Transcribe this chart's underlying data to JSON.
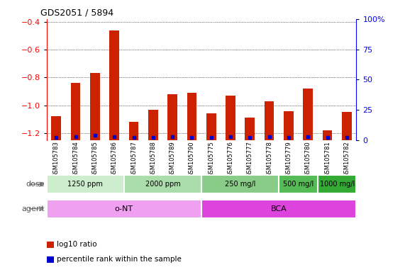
{
  "title": "GDS2051 / 5894",
  "samples": [
    "GSM105783",
    "GSM105784",
    "GSM105785",
    "GSM105786",
    "GSM105787",
    "GSM105788",
    "GSM105789",
    "GSM105790",
    "GSM105775",
    "GSM105776",
    "GSM105777",
    "GSM105778",
    "GSM105779",
    "GSM105780",
    "GSM105781",
    "GSM105782"
  ],
  "log10_ratio": [
    -1.08,
    -0.84,
    -0.77,
    -0.46,
    -1.12,
    -1.03,
    -0.92,
    -0.91,
    -1.06,
    -0.93,
    -1.09,
    -0.97,
    -1.04,
    -0.88,
    -1.18,
    -1.05
  ],
  "percentile_rank": [
    2,
    3,
    4,
    3,
    2,
    2,
    3,
    2,
    2,
    3,
    2,
    3,
    2,
    3,
    2,
    2
  ],
  "bar_color": "#cc2200",
  "dot_color": "#0000cc",
  "ylim_left": [
    -1.25,
    -0.38
  ],
  "ylim_right": [
    0,
    100
  ],
  "yticks_left": [
    -1.2,
    -1.0,
    -0.8,
    -0.6,
    -0.4
  ],
  "yticks_right": [
    0,
    25,
    50,
    75,
    100
  ],
  "ytick_labels_right": [
    "0",
    "25",
    "50",
    "75",
    "100%"
  ],
  "dose_groups": [
    {
      "label": "1250 ppm",
      "start": 0,
      "end": 4,
      "color": "#cceecc"
    },
    {
      "label": "2000 ppm",
      "start": 4,
      "end": 8,
      "color": "#aaddaa"
    },
    {
      "label": "250 mg/l",
      "start": 8,
      "end": 12,
      "color": "#88cc88"
    },
    {
      "label": "500 mg/l",
      "start": 12,
      "end": 14,
      "color": "#55bb55"
    },
    {
      "label": "1000 mg/l",
      "start": 14,
      "end": 16,
      "color": "#33aa33"
    }
  ],
  "agent_groups": [
    {
      "label": "o-NT",
      "start": 0,
      "end": 8,
      "color": "#f0a0f0"
    },
    {
      "label": "BCA",
      "start": 8,
      "end": 16,
      "color": "#dd44dd"
    }
  ],
  "legend_items": [
    {
      "color": "#cc2200",
      "label": "log10 ratio"
    },
    {
      "color": "#0000cc",
      "label": "percentile rank within the sample"
    }
  ],
  "background_color": "#ffffff"
}
